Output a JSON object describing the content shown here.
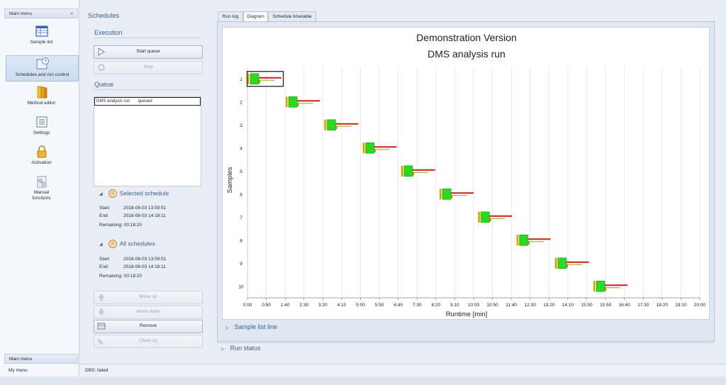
{
  "nav": {
    "header": "Main menu",
    "items": [
      {
        "label": "Sample list",
        "icon": "table-icon"
      },
      {
        "label": "Schedules and run control",
        "icon": "schedule-icon"
      },
      {
        "label": "Method editor",
        "icon": "book-icon"
      },
      {
        "label": "Settings",
        "icon": "settings-icon"
      },
      {
        "label": "Activation",
        "icon": "lock-icon"
      },
      {
        "label_line1": "Manual",
        "label_line2": "functions",
        "icon": "manual-icon"
      }
    ],
    "footer_main": "Main menu",
    "footer_my": "My menu"
  },
  "schedules": {
    "title": "Schedules",
    "execution_title": "Execution",
    "start_queue": "Start queue",
    "stop": "Stop",
    "queue_title": "Queue",
    "queue_items": [
      {
        "name": "DMS analysis run",
        "status": "queued"
      }
    ],
    "selected_schedule": {
      "title": "Selected schedule",
      "start_label": "Start:",
      "start": "2018-08-03 13:59:51",
      "end_label": "End:",
      "end": "2018-08-03 14:18:11",
      "remaining_label": "Remaining:",
      "remaining": "00:18:20"
    },
    "all_schedules": {
      "title": "All schedules",
      "start_label": "Start:",
      "start": "2018-08-03 13:59:51",
      "end_label": "End:",
      "end": "2018-08-03 14:18:11",
      "remaining_label": "Remaining:",
      "remaining": "00:18:20"
    },
    "move_up": "Move up",
    "move_down": "Move down",
    "remove": "Remove",
    "clean_up": "Clean up"
  },
  "tabs": [
    "Run log",
    "Diagram",
    "Schedule timetable"
  ],
  "active_tab": "Diagram",
  "sample_list_line": "Sample list line",
  "run_status": "Run status",
  "status_bar": "DBS: failed",
  "colors": {
    "green": "#22dd22",
    "orange": "#e08a10",
    "yellow": "#f5e23c",
    "dark_orange": "#c97a0a",
    "red": "#c8201c",
    "olive": "#a6b54a"
  },
  "chart_data": {
    "type": "timeline",
    "title": "Demonstration Version",
    "subtitle": "DMS analysis run",
    "xlabel": "Runtime [min]",
    "ylabel": "Samples",
    "x_ticks": [
      "0:00",
      "0:50",
      "1:40",
      "2:30",
      "3:20",
      "4:10",
      "5:00",
      "5:50",
      "6:40",
      "7:30",
      "8:20",
      "9:10",
      "10:00",
      "10:50",
      "11:40",
      "12:30",
      "13:20",
      "14:10",
      "15:00",
      "15:50",
      "16:40",
      "17:30",
      "18:20",
      "19:10",
      "20:00"
    ],
    "xlim_seconds": [
      0,
      1200
    ],
    "categories": [
      "1",
      "2",
      "3",
      "4",
      "5",
      "6",
      "7",
      "8",
      "9",
      "10"
    ],
    "sample_start_seconds": [
      0,
      102,
      204,
      306,
      408,
      510,
      612,
      714,
      816,
      918
    ],
    "selected_sample": "1",
    "grid": true
  }
}
